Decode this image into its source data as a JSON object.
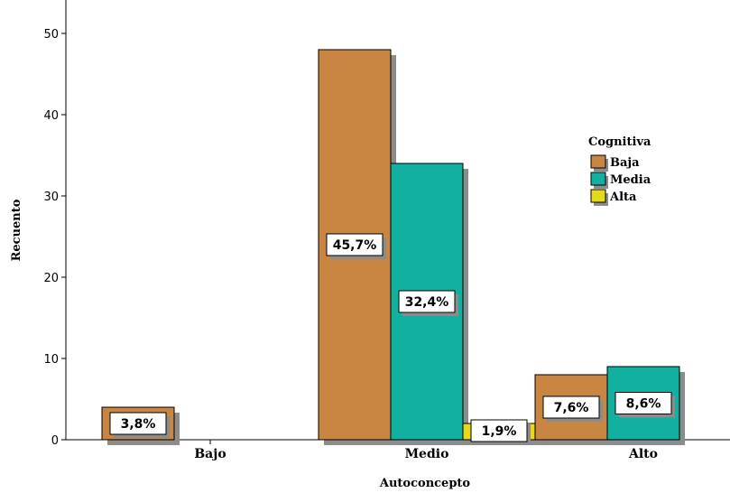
{
  "chart_data": {
    "type": "bar",
    "title": "",
    "xlabel": "Autoconcepto",
    "ylabel": "Recuento",
    "ylim": [
      0,
      50
    ],
    "yticks": [
      0,
      10,
      20,
      30,
      40,
      50
    ],
    "categories": [
      "Bajo",
      "Medio",
      "Alto"
    ],
    "legend_title": "Cognitiva",
    "legend_position": "right",
    "series": [
      {
        "name": "Baja",
        "color": "#c98542",
        "values": [
          4,
          48,
          8
        ],
        "labels": [
          "3,8%",
          "45,7%",
          "7,6%"
        ]
      },
      {
        "name": "Media",
        "color": "#12b0a0",
        "values": [
          0,
          34,
          9
        ],
        "labels": [
          "",
          "32,4%",
          "8,6%"
        ]
      },
      {
        "name": "Alta",
        "color": "#e4d91a",
        "values": [
          0,
          2,
          0
        ],
        "labels": [
          "",
          "1,9%",
          ""
        ]
      }
    ]
  }
}
